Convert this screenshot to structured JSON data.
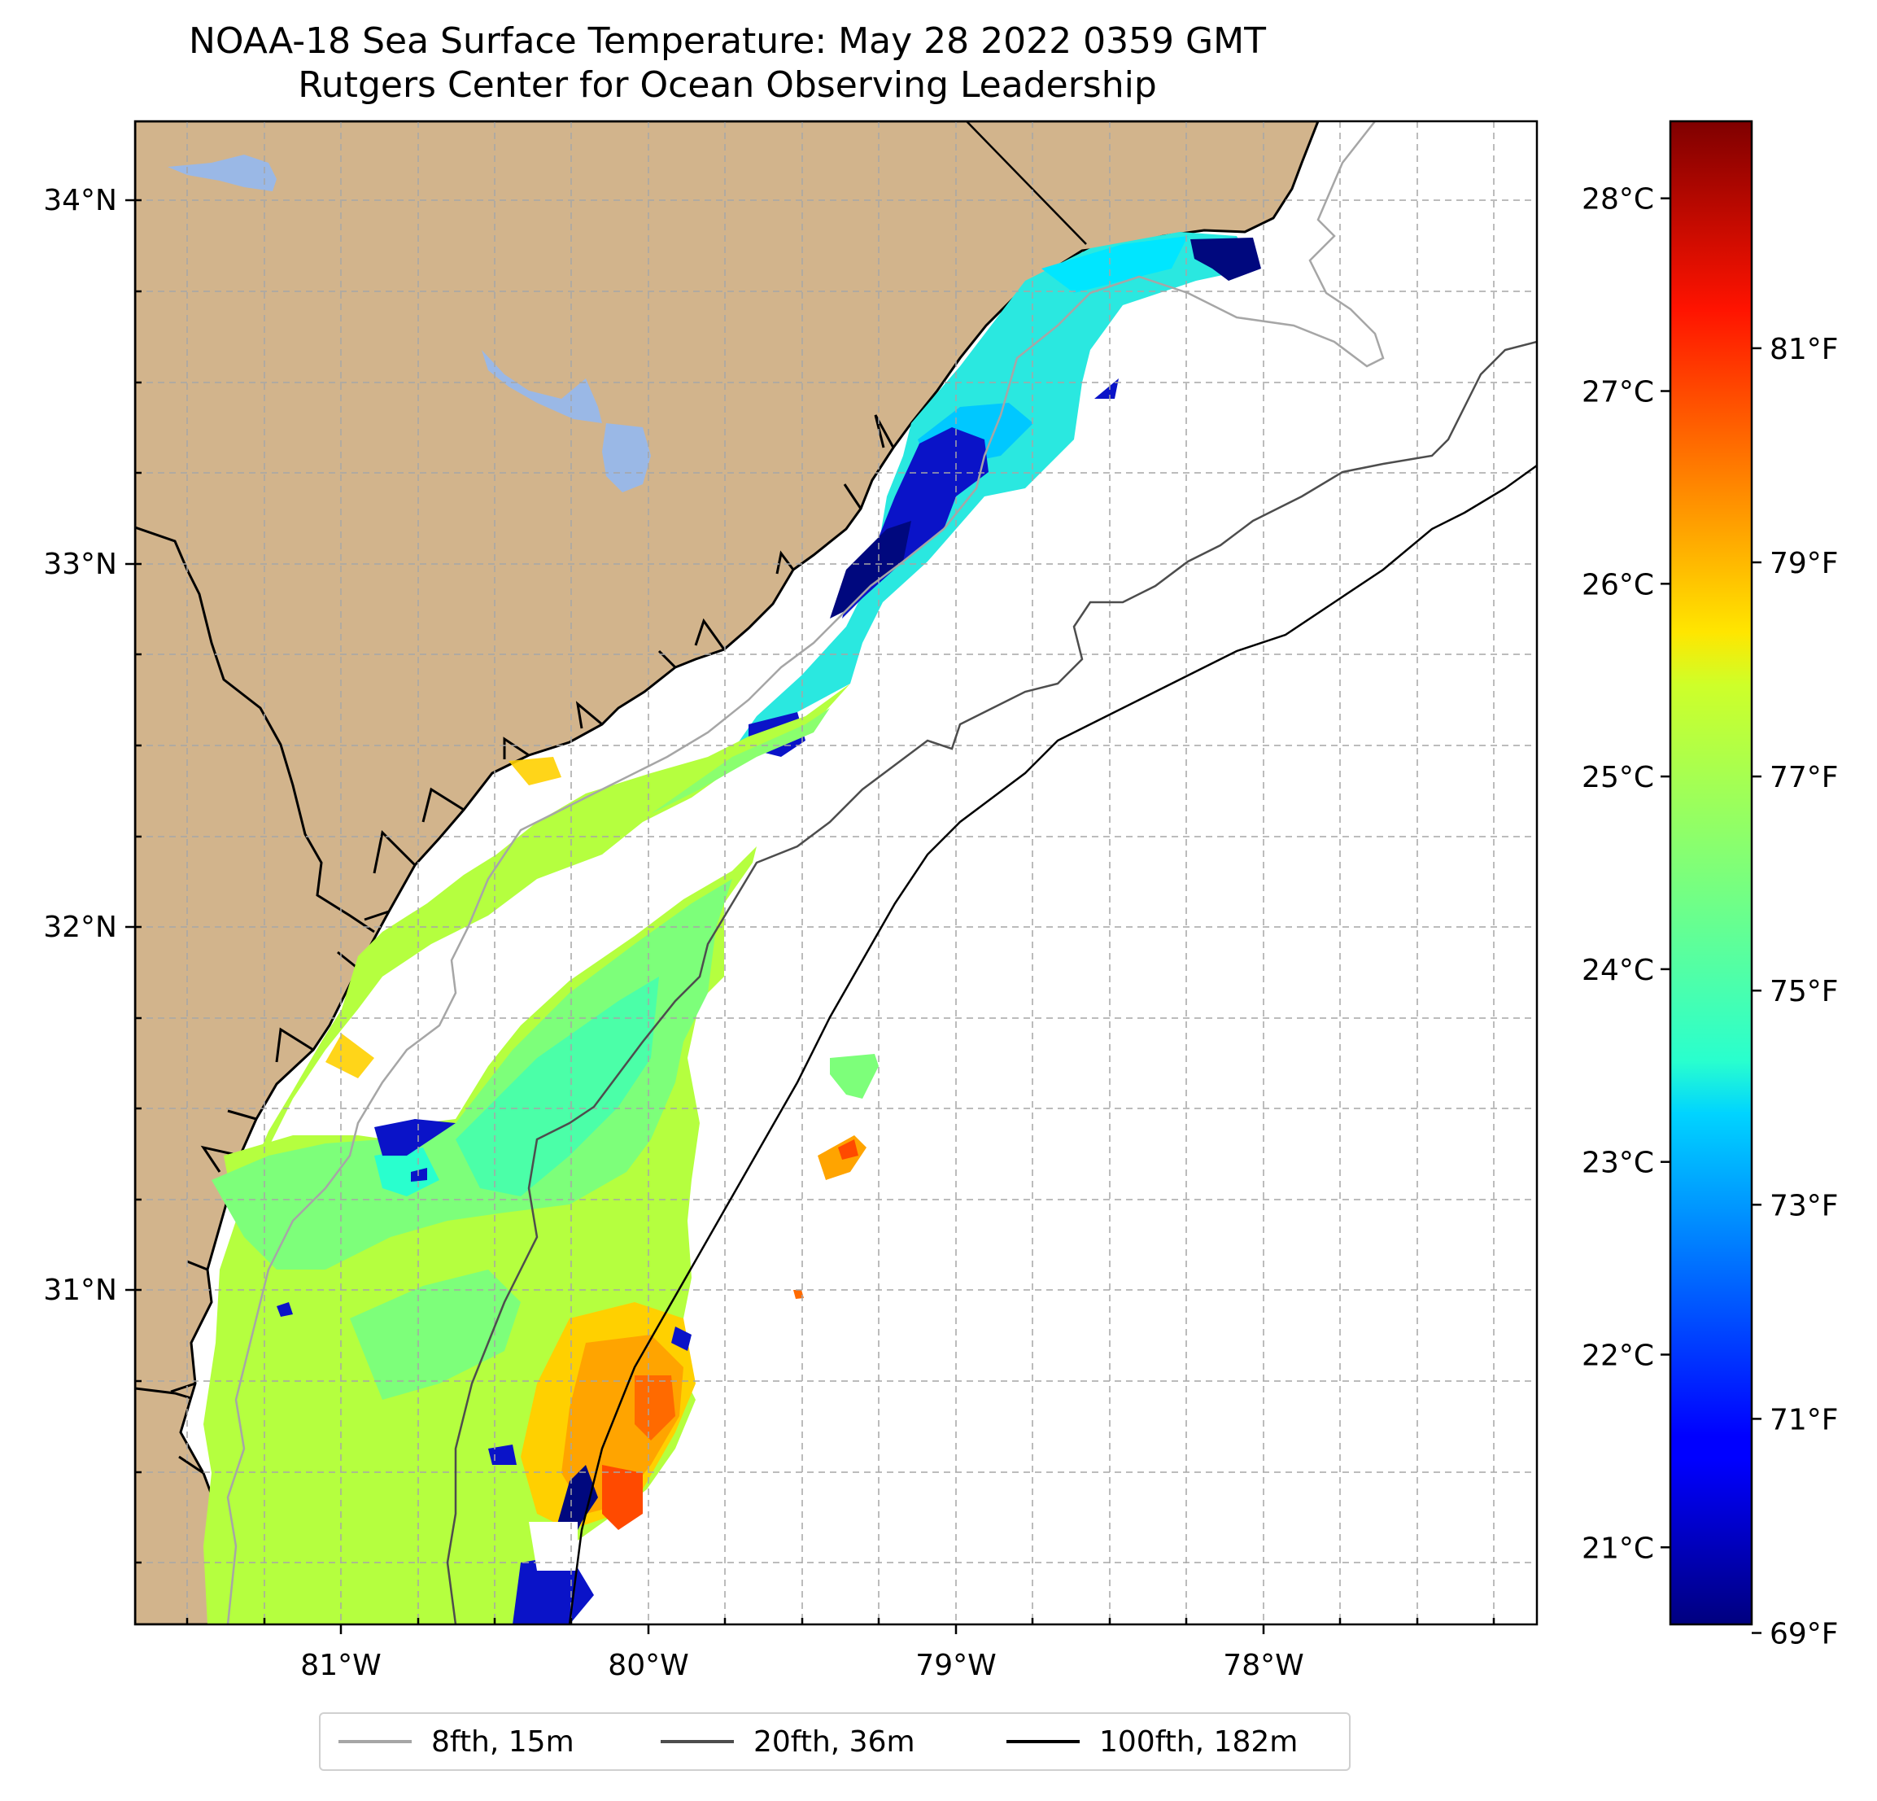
{
  "title": {
    "line1": "NOAA-18 Sea Surface Temperature: May 28 2022 0359 GMT",
    "line2": "Rutgers Center for Ocean Observing Leadership"
  },
  "map": {
    "lon_ticks": [
      "81°W",
      "80°W",
      "79°W",
      "78°W"
    ],
    "lat_ticks": [
      "34°N",
      "33°N",
      "32°N",
      "31°N"
    ],
    "lon_range": [
      -81.68,
      -77.12
    ],
    "lat_range": [
      30.07,
      34.23
    ]
  },
  "colorbar": {
    "celsius_labels": [
      "28°C",
      "27°C",
      "26°C",
      "25°C",
      "24°C",
      "23°C",
      "22°C",
      "21°C"
    ],
    "fahrenheit_labels": [
      "81°F",
      "79°F",
      "77°F",
      "75°F",
      "73°F",
      "71°F",
      "69°F"
    ],
    "range_c": [
      20.6,
      28.4
    ]
  },
  "legend": {
    "items": [
      {
        "label": "8fth, 15m",
        "color": "#a6a6a6"
      },
      {
        "label": "20fth, 36m",
        "color": "#4d4d4d"
      },
      {
        "label": "100fth, 182m",
        "color": "#000000"
      }
    ]
  },
  "colors": {
    "land": "#d2b48c",
    "lakes": "#9ab8e6"
  }
}
